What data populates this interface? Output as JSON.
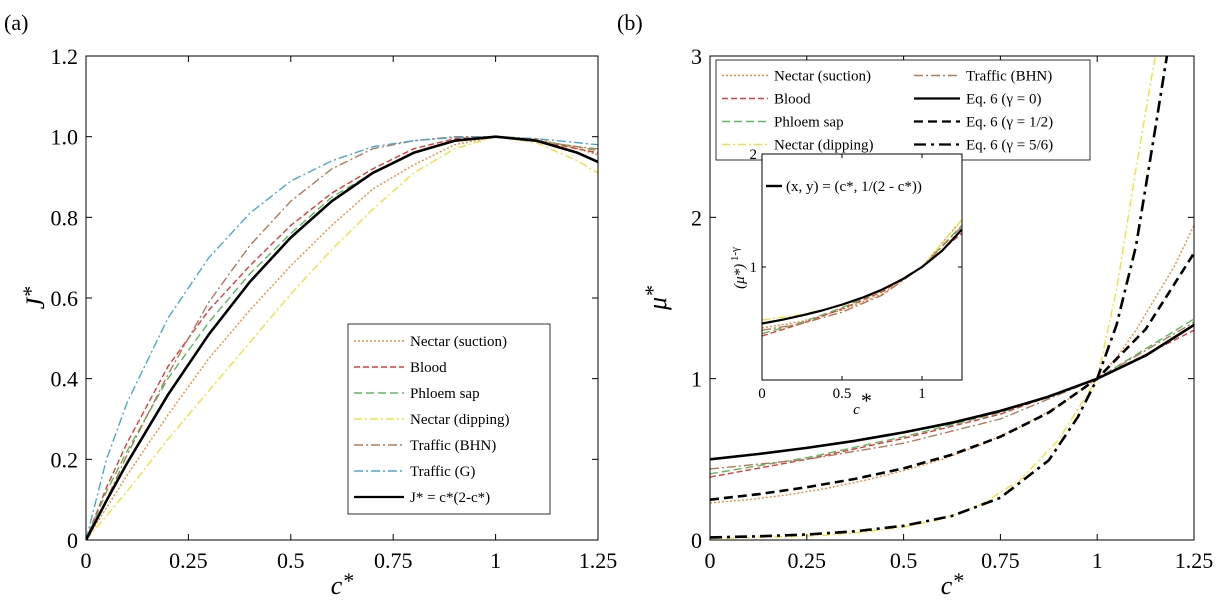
{
  "figure": {
    "panels": [
      {
        "id": "a",
        "label": "(a)"
      },
      {
        "id": "b",
        "label": "(b)"
      }
    ]
  },
  "styles": {
    "nectar_suction": {
      "color": "#f08a3c",
      "dash": "2,2"
    },
    "blood": {
      "color": "#e03a3a",
      "dash": "6,3"
    },
    "phloem_sap": {
      "color": "#5cb85c",
      "dash": "8,4"
    },
    "nectar_dipping": {
      "color": "#f0e040",
      "dash": "8,3,2,3"
    },
    "traffic_bhn": {
      "color": "#b07a5a",
      "dash": "9,3,2,3"
    },
    "traffic_g": {
      "color": "#4aa8d0",
      "dash": "9,3,2,3"
    },
    "black_solid": {
      "color": "#000000",
      "dash": ""
    },
    "black_dashed": {
      "color": "#000000",
      "dash": "9,5"
    },
    "black_dashdot": {
      "color": "#000000",
      "dash": "12,5,3,5"
    }
  },
  "chart_data": [
    {
      "panel": "(a)",
      "type": "line",
      "xlabel": "c*",
      "ylabel": "J*",
      "xlim": [
        0,
        1.25
      ],
      "ylim": [
        0,
        1.2
      ],
      "xticks": [
        "0",
        "0.25",
        "0.5",
        "0.75",
        "1",
        "1.25"
      ],
      "yticks": [
        "0",
        "0.2",
        "0.4",
        "0.6",
        "0.8",
        "1.0",
        "1.2"
      ],
      "legend_position": "lower-right",
      "series": [
        {
          "name": "Nectar (suction)",
          "style": "nectar_suction",
          "x": [
            0,
            0.05,
            0.1,
            0.2,
            0.3,
            0.4,
            0.5,
            0.6,
            0.7,
            0.8,
            0.9,
            1.0,
            1.1,
            1.2,
            1.25
          ],
          "y": [
            0,
            0.08,
            0.16,
            0.31,
            0.45,
            0.57,
            0.68,
            0.78,
            0.87,
            0.93,
            0.98,
            1.0,
            0.995,
            0.97,
            0.955
          ]
        },
        {
          "name": "Blood",
          "style": "blood",
          "x": [
            0,
            0.05,
            0.1,
            0.2,
            0.3,
            0.4,
            0.5,
            0.6,
            0.7,
            0.8,
            0.9,
            1.0,
            1.1,
            1.2,
            1.25
          ],
          "y": [
            0,
            0.13,
            0.24,
            0.43,
            0.57,
            0.68,
            0.78,
            0.86,
            0.92,
            0.97,
            0.995,
            1.0,
            0.99,
            0.97,
            0.96
          ]
        },
        {
          "name": "Phloem sap",
          "style": "phloem_sap",
          "x": [
            0,
            0.05,
            0.1,
            0.2,
            0.3,
            0.4,
            0.5,
            0.6,
            0.7,
            0.8,
            0.9,
            1.0,
            1.1,
            1.2,
            1.25
          ],
          "y": [
            0,
            0.12,
            0.22,
            0.4,
            0.54,
            0.66,
            0.76,
            0.85,
            0.91,
            0.96,
            0.99,
            1.0,
            0.99,
            0.975,
            0.965
          ]
        },
        {
          "name": "Nectar (dipping)",
          "style": "nectar_dipping",
          "x": [
            0,
            0.05,
            0.1,
            0.2,
            0.3,
            0.4,
            0.5,
            0.6,
            0.7,
            0.8,
            0.9,
            1.0,
            1.1,
            1.2,
            1.25
          ],
          "y": [
            0,
            0.06,
            0.12,
            0.25,
            0.37,
            0.49,
            0.61,
            0.72,
            0.82,
            0.91,
            0.97,
            1.0,
            0.985,
            0.94,
            0.91
          ]
        },
        {
          "name": "Traffic (BHN)",
          "style": "traffic_bhn",
          "x": [
            0,
            0.05,
            0.1,
            0.2,
            0.3,
            0.4,
            0.5,
            0.6,
            0.7,
            0.8,
            0.9,
            1.0,
            1.1,
            1.2,
            1.25
          ],
          "y": [
            0,
            0.1,
            0.21,
            0.41,
            0.59,
            0.73,
            0.84,
            0.92,
            0.97,
            0.99,
            1.0,
            1.0,
            0.99,
            0.975,
            0.97
          ]
        },
        {
          "name": "Traffic (G)",
          "style": "traffic_g",
          "x": [
            0,
            0.05,
            0.1,
            0.2,
            0.3,
            0.4,
            0.5,
            0.6,
            0.7,
            0.8,
            0.9,
            1.0,
            1.1,
            1.2,
            1.25
          ],
          "y": [
            0,
            0.2,
            0.34,
            0.55,
            0.7,
            0.81,
            0.89,
            0.94,
            0.975,
            0.99,
            0.998,
            1.0,
            0.995,
            0.985,
            0.98
          ]
        },
        {
          "name": "J* = c*(2-c*)",
          "style": "black_solid",
          "x": [
            0,
            0.05,
            0.1,
            0.2,
            0.3,
            0.4,
            0.5,
            0.6,
            0.7,
            0.8,
            0.9,
            1.0,
            1.1,
            1.2,
            1.25
          ],
          "y": [
            0,
            0.0975,
            0.19,
            0.36,
            0.51,
            0.64,
            0.75,
            0.84,
            0.91,
            0.96,
            0.99,
            1.0,
            0.99,
            0.96,
            0.9375
          ]
        }
      ],
      "legend": [
        {
          "label": "Nectar (suction)",
          "style": "nectar_suction"
        },
        {
          "label": "Blood",
          "style": "blood"
        },
        {
          "label": "Phloem sap",
          "style": "phloem_sap"
        },
        {
          "label": "Nectar (dipping)",
          "style": "nectar_dipping"
        },
        {
          "label": "Traffic (BHN)",
          "style": "traffic_bhn"
        },
        {
          "label": "Traffic (G)",
          "style": "traffic_g"
        },
        {
          "label": "J* = c*(2-c*)",
          "style": "black_solid"
        }
      ]
    },
    {
      "panel": "(b)",
      "type": "line",
      "xlabel": "c*",
      "ylabel": "μ*",
      "xlim": [
        0,
        1.25
      ],
      "ylim": [
        0,
        3
      ],
      "xticks": [
        "0",
        "0.25",
        "0.5",
        "0.75",
        "1",
        "1.25"
      ],
      "yticks": [
        "0",
        "1",
        "2",
        "3"
      ],
      "legend_position": "top",
      "series": [
        {
          "name": "Nectar (suction)",
          "style": "nectar_suction",
          "x": [
            0,
            0.1,
            0.2,
            0.3,
            0.4,
            0.5,
            0.6,
            0.7,
            0.8,
            0.9,
            1.0,
            1.05,
            1.1,
            1.15,
            1.2,
            1.25
          ],
          "y": [
            0.23,
            0.25,
            0.28,
            0.32,
            0.37,
            0.43,
            0.5,
            0.59,
            0.7,
            0.83,
            1.0,
            1.13,
            1.3,
            1.5,
            1.7,
            1.95
          ]
        },
        {
          "name": "Blood",
          "style": "blood",
          "x": [
            0,
            0.25,
            0.5,
            0.75,
            1.0,
            1.25
          ],
          "y": [
            0.39,
            0.5,
            0.63,
            0.78,
            1.0,
            1.3
          ]
        },
        {
          "name": "Phloem sap",
          "style": "phloem_sap",
          "x": [
            0,
            0.25,
            0.5,
            0.75,
            1.0,
            1.25
          ],
          "y": [
            0.41,
            0.51,
            0.64,
            0.79,
            1.0,
            1.37
          ]
        },
        {
          "name": "Nectar (dipping)",
          "style": "nectar_dipping",
          "x": [
            0,
            0.1,
            0.2,
            0.3,
            0.4,
            0.5,
            0.6,
            0.7,
            0.8,
            0.9,
            1.0,
            1.05,
            1.1,
            1.15
          ],
          "y": [
            0.01,
            0.015,
            0.02,
            0.03,
            0.05,
            0.08,
            0.13,
            0.22,
            0.37,
            0.62,
            1.0,
            1.55,
            2.3,
            3.0
          ]
        },
        {
          "name": "Traffic (BHN)",
          "style": "traffic_bhn",
          "x": [
            0,
            0.25,
            0.5,
            0.75,
            1.0,
            1.25
          ],
          "y": [
            0.44,
            0.5,
            0.6,
            0.75,
            1.0,
            1.35
          ]
        },
        {
          "name": "Eq. 6 (γ = 0)",
          "style": "black_solid",
          "x": [
            0,
            0.125,
            0.25,
            0.375,
            0.5,
            0.625,
            0.75,
            0.875,
            1.0,
            1.125,
            1.25
          ],
          "y": [
            0.5,
            0.533,
            0.571,
            0.615,
            0.667,
            0.727,
            0.8,
            0.889,
            1.0,
            1.143,
            1.333
          ]
        },
        {
          "name": "Eq. 6 (γ = 1/2)",
          "style": "black_dashed",
          "x": [
            0,
            0.125,
            0.25,
            0.375,
            0.5,
            0.625,
            0.75,
            0.875,
            1.0,
            1.125,
            1.25
          ],
          "y": [
            0.25,
            0.284,
            0.327,
            0.379,
            0.444,
            0.529,
            0.64,
            0.79,
            1.0,
            1.306,
            1.778
          ]
        },
        {
          "name": "Eq. 6 (γ = 5/6)",
          "style": "black_dashdot",
          "x": [
            0,
            0.125,
            0.25,
            0.375,
            0.5,
            0.625,
            0.75,
            0.875,
            0.95,
            1.0,
            1.05,
            1.1,
            1.15,
            1.18
          ],
          "y": [
            0.016,
            0.023,
            0.034,
            0.054,
            0.088,
            0.149,
            0.262,
            0.494,
            0.762,
            1.0,
            1.333,
            1.82,
            2.55,
            3.0
          ]
        }
      ],
      "legend": [
        {
          "label": "Nectar (suction)",
          "style": "nectar_suction"
        },
        {
          "label": "Blood",
          "style": "blood"
        },
        {
          "label": "Phloem sap",
          "style": "phloem_sap"
        },
        {
          "label": "Nectar (dipping)",
          "style": "nectar_dipping"
        },
        {
          "label": "Traffic (BHN)",
          "style": "traffic_bhn"
        },
        {
          "label": "Eq. 6 (γ = 0)",
          "style": "black_solid"
        },
        {
          "label": "Eq. 6 (γ = 1/2)",
          "style": "black_dashed"
        },
        {
          "label": "Eq. 6 (γ = 5/6)",
          "style": "black_dashdot"
        }
      ]
    },
    {
      "panel": "(b) inset",
      "type": "line",
      "xlabel": "c*",
      "ylabel": "(μ*) 1-γ",
      "xlim": [
        0,
        1.25
      ],
      "ylim": [
        0,
        2
      ],
      "xticks": [
        "0",
        "0.5",
        "1"
      ],
      "yticks": [
        "1",
        "2"
      ],
      "legend_position": "top-left",
      "series": [
        {
          "name": "Nectar (suction)",
          "style": "nectar_suction",
          "x": [
            0,
            0.25,
            0.5,
            0.75,
            1.0,
            1.25
          ],
          "y": [
            0.46,
            0.52,
            0.62,
            0.76,
            1.0,
            1.42
          ]
        },
        {
          "name": "Blood",
          "style": "blood",
          "x": [
            0,
            0.25,
            0.5,
            0.75,
            1.0,
            1.25
          ],
          "y": [
            0.39,
            0.5,
            0.63,
            0.78,
            1.0,
            1.3
          ]
        },
        {
          "name": "Phloem sap",
          "style": "phloem_sap",
          "x": [
            0,
            0.25,
            0.5,
            0.75,
            1.0,
            1.25
          ],
          "y": [
            0.41,
            0.51,
            0.64,
            0.79,
            1.0,
            1.37
          ]
        },
        {
          "name": "Nectar (dipping)",
          "style": "nectar_dipping",
          "x": [
            0,
            0.25,
            0.5,
            0.75,
            1.0,
            1.25
          ],
          "y": [
            0.53,
            0.58,
            0.66,
            0.79,
            1.0,
            1.42
          ]
        },
        {
          "name": "Traffic (BHN)",
          "style": "traffic_bhn",
          "x": [
            0,
            0.25,
            0.5,
            0.75,
            1.0,
            1.25
          ],
          "y": [
            0.44,
            0.5,
            0.6,
            0.75,
            1.0,
            1.36
          ]
        },
        {
          "name": "(x, y) = (c*, 1/(2 - c*))",
          "style": "black_solid",
          "x": [
            0,
            0.125,
            0.25,
            0.375,
            0.5,
            0.625,
            0.75,
            0.875,
            1.0,
            1.125,
            1.25
          ],
          "y": [
            0.5,
            0.533,
            0.571,
            0.615,
            0.667,
            0.727,
            0.8,
            0.889,
            1.0,
            1.143,
            1.333
          ]
        }
      ],
      "legend": [
        {
          "label": "(x, y) = (c*, 1/(2 - c*))",
          "style": "black_solid"
        }
      ]
    }
  ]
}
